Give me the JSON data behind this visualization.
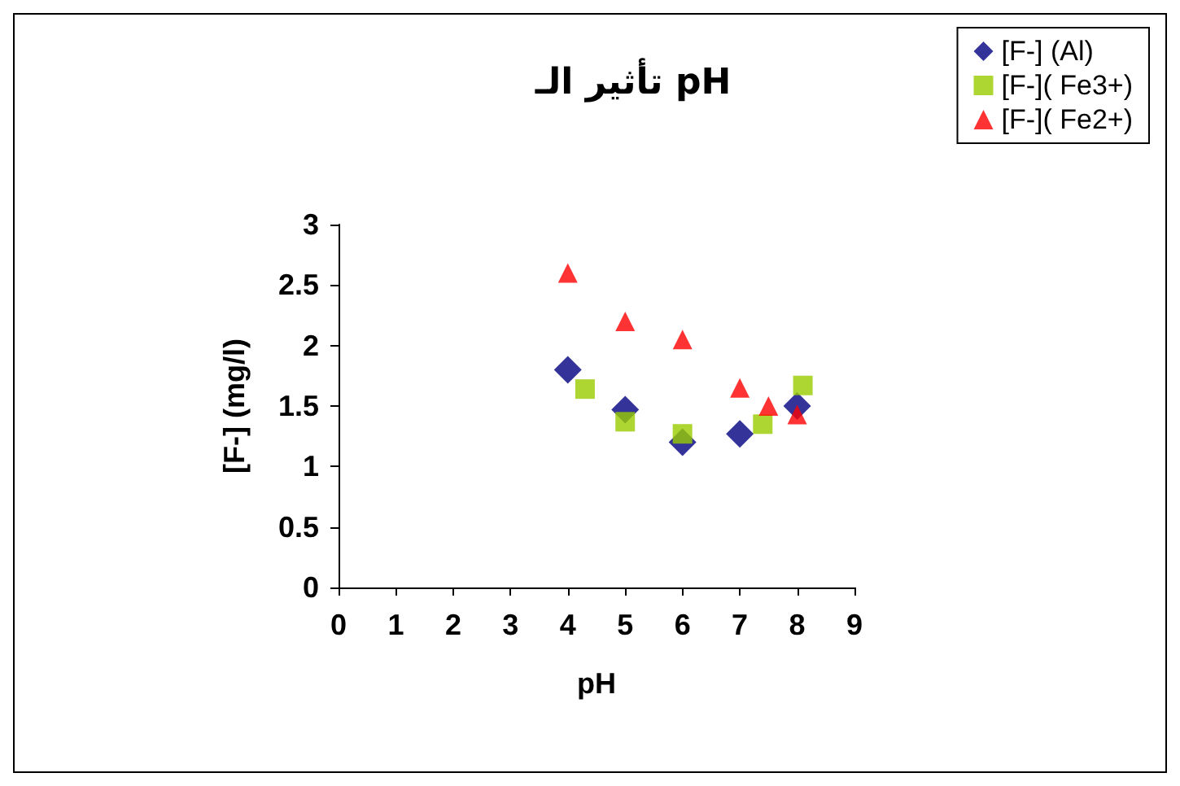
{
  "chart_data": {
    "type": "scatter",
    "title": "تأثير الـ pH",
    "xlabel": "pH",
    "ylabel": "[F-] (mg/l)",
    "xlim": [
      0,
      9
    ],
    "xticks": [
      0,
      1,
      2,
      3,
      4,
      5,
      6,
      7,
      8,
      9
    ],
    "ylim": [
      0,
      3
    ],
    "yticks": [
      0,
      0.5,
      1,
      1.5,
      2,
      2.5,
      3
    ],
    "grid": false,
    "legend": "top right",
    "series": [
      {
        "name": "[F-] (Al)",
        "color": "#000080",
        "marker": "diamond",
        "x": [
          4,
          5,
          6,
          7,
          8
        ],
        "values": [
          1.8,
          1.47,
          1.2,
          1.27,
          1.5
        ]
      },
      {
        "name": "[F-]( Fe3+)",
        "color": "#99cc00",
        "marker": "square",
        "x": [
          4.3,
          5,
          6,
          7.4,
          8.1
        ],
        "values": [
          1.64,
          1.37,
          1.27,
          1.35,
          1.67
        ]
      },
      {
        "name": "[F-]( Fe2+)",
        "color": "#ff0000",
        "marker": "triangle",
        "x": [
          4,
          5,
          6,
          7,
          7.5,
          8
        ],
        "values": [
          2.6,
          2.2,
          2.05,
          1.65,
          1.5,
          1.43
        ]
      }
    ]
  }
}
